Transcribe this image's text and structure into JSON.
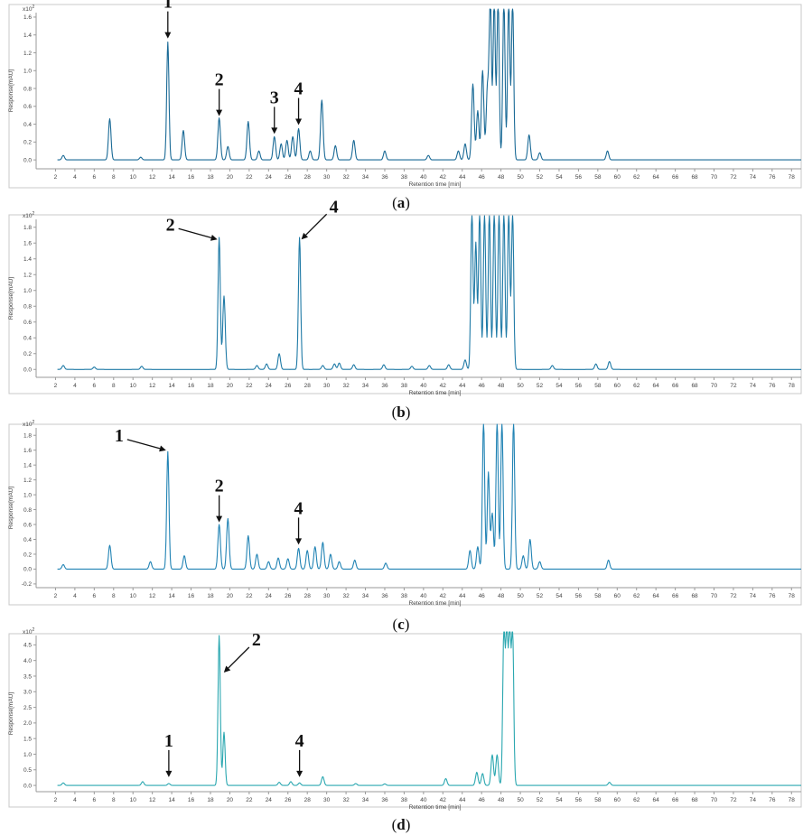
{
  "panels": [
    {
      "caption": "a",
      "color": "#1a6a96",
      "y_label": "Response[mAU]",
      "x_label": "Retention time [min]",
      "exponent": "x10",
      "exponent_power": "2",
      "y_ticks": [
        "0.0",
        "0.2",
        "0.4",
        "0.6",
        "0.8",
        "1.0",
        "1.2",
        "1.4",
        "1.6"
      ],
      "annotations": [
        {
          "label": "1",
          "x": 13.6,
          "y": 1.32,
          "style": "down"
        },
        {
          "label": "2",
          "x": 18.9,
          "y": 0.45,
          "style": "down"
        },
        {
          "label": "3",
          "x": 24.6,
          "y": 0.25,
          "style": "down"
        },
        {
          "label": "4",
          "x": 27.1,
          "y": 0.35,
          "style": "down"
        }
      ]
    },
    {
      "caption": "b",
      "color": "#1f7aa6",
      "y_label": "Response[mAU]",
      "x_label": "Retention time [min]",
      "exponent": "x10",
      "exponent_power": "2",
      "y_ticks": [
        "0.0",
        "0.2",
        "0.4",
        "0.6",
        "0.8",
        "1.0",
        "1.2",
        "1.4",
        "1.6",
        "1.8"
      ],
      "annotations": [
        {
          "label": "2",
          "x": 18.9,
          "y": 1.6,
          "style": "left"
        },
        {
          "label": "4",
          "x": 27.2,
          "y": 1.6,
          "style": "right"
        }
      ]
    },
    {
      "caption": "c",
      "color": "#2183b4",
      "y_label": "Response[mAU]",
      "x_label": "Retention time [min]",
      "exponent": "x10",
      "exponent_power": "2",
      "y_ticks": [
        "-0.2",
        "0.0",
        "0.2",
        "0.4",
        "0.6",
        "0.8",
        "1.0",
        "1.2",
        "1.4",
        "1.6",
        "1.8"
      ],
      "annotations": [
        {
          "label": "1",
          "x": 13.6,
          "y": 1.55,
          "style": "left"
        },
        {
          "label": "2",
          "x": 18.9,
          "y": 0.58,
          "style": "down"
        },
        {
          "label": "4",
          "x": 27.1,
          "y": 0.28,
          "style": "down"
        }
      ]
    },
    {
      "caption": "d",
      "color": "#2aa7b0",
      "y_label": "Response[mAU]",
      "x_label": "Retention time [min]",
      "exponent": "x10",
      "exponent_power": "2",
      "y_ticks": [
        "0.0",
        "0.5",
        "1.0",
        "1.5",
        "2.0",
        "2.5",
        "3.0",
        "3.5",
        "4.0",
        "4.5"
      ],
      "annotations": [
        {
          "label": "1",
          "x": 13.7,
          "y": 0.15,
          "style": "down"
        },
        {
          "label": "2",
          "x": 19.2,
          "y": 3.5,
          "style": "right"
        },
        {
          "label": "4",
          "x": 27.2,
          "y": 0.15,
          "style": "down"
        }
      ]
    }
  ],
  "x_ticks": [
    "2",
    "4",
    "6",
    "8",
    "10",
    "12",
    "14",
    "16",
    "18",
    "20",
    "22",
    "24",
    "26",
    "28",
    "30",
    "32",
    "34",
    "36",
    "38",
    "40",
    "42",
    "44",
    "46",
    "48",
    "50",
    "52",
    "54",
    "56",
    "58",
    "60",
    "62",
    "64",
    "66",
    "68",
    "70",
    "72",
    "74",
    "76",
    "78"
  ],
  "chart_data": [
    {
      "type": "line",
      "panel": "a",
      "xlabel": "Retention time [min]",
      "ylabel": "Response[mAU]",
      "y_multiplier": "x10^2",
      "xlim": [
        0,
        79
      ],
      "ylim": [
        -0.1,
        1.65
      ],
      "peaks": [
        {
          "x": 2.8,
          "y": 0.05
        },
        {
          "x": 7.6,
          "y": 0.46
        },
        {
          "x": 10.8,
          "y": 0.03
        },
        {
          "x": 13.6,
          "y": 1.32
        },
        {
          "x": 15.2,
          "y": 0.33
        },
        {
          "x": 18.9,
          "y": 0.47
        },
        {
          "x": 19.8,
          "y": 0.15
        },
        {
          "x": 21.9,
          "y": 0.43
        },
        {
          "x": 23.0,
          "y": 0.1
        },
        {
          "x": 24.6,
          "y": 0.26
        },
        {
          "x": 25.3,
          "y": 0.18
        },
        {
          "x": 25.9,
          "y": 0.22
        },
        {
          "x": 26.5,
          "y": 0.26
        },
        {
          "x": 27.1,
          "y": 0.35
        },
        {
          "x": 28.3,
          "y": 0.1
        },
        {
          "x": 29.5,
          "y": 0.67
        },
        {
          "x": 30.9,
          "y": 0.16
        },
        {
          "x": 32.8,
          "y": 0.22
        },
        {
          "x": 36.0,
          "y": 0.1
        },
        {
          "x": 40.5,
          "y": 0.05
        },
        {
          "x": 43.6,
          "y": 0.1
        },
        {
          "x": 44.3,
          "y": 0.18
        },
        {
          "x": 45.1,
          "y": 0.85
        },
        {
          "x": 45.6,
          "y": 0.55
        },
        {
          "x": 46.1,
          "y": 1.0
        },
        {
          "x": 46.6,
          "y": 0.8
        },
        {
          "x": 46.9,
          "y": 1.8
        },
        {
          "x": 47.3,
          "y": 1.8
        },
        {
          "x": 47.7,
          "y": 1.8
        },
        {
          "x": 48.3,
          "y": 1.8
        },
        {
          "x": 48.8,
          "y": 1.8
        },
        {
          "x": 49.2,
          "y": 1.8
        },
        {
          "x": 50.9,
          "y": 0.28
        },
        {
          "x": 52.0,
          "y": 0.08
        },
        {
          "x": 59.0,
          "y": 0.1
        }
      ]
    },
    {
      "type": "line",
      "panel": "b",
      "xlabel": "Retention time [min]",
      "ylabel": "Response[mAU]",
      "y_multiplier": "x10^2",
      "xlim": [
        0,
        79
      ],
      "ylim": [
        -0.1,
        1.9
      ],
      "peaks": [
        {
          "x": 2.8,
          "y": 0.05
        },
        {
          "x": 6.0,
          "y": 0.03
        },
        {
          "x": 10.9,
          "y": 0.04
        },
        {
          "x": 18.9,
          "y": 1.67
        },
        {
          "x": 19.4,
          "y": 0.93
        },
        {
          "x": 22.8,
          "y": 0.05
        },
        {
          "x": 23.8,
          "y": 0.07
        },
        {
          "x": 25.1,
          "y": 0.2
        },
        {
          "x": 27.2,
          "y": 1.67
        },
        {
          "x": 29.6,
          "y": 0.05
        },
        {
          "x": 30.8,
          "y": 0.07
        },
        {
          "x": 31.3,
          "y": 0.08
        },
        {
          "x": 32.8,
          "y": 0.06
        },
        {
          "x": 35.9,
          "y": 0.06
        },
        {
          "x": 38.8,
          "y": 0.04
        },
        {
          "x": 40.6,
          "y": 0.05
        },
        {
          "x": 42.6,
          "y": 0.06
        },
        {
          "x": 44.3,
          "y": 0.12
        },
        {
          "x": 45.0,
          "y": 2.0
        },
        {
          "x": 45.4,
          "y": 1.6
        },
        {
          "x": 45.8,
          "y": 2.0
        },
        {
          "x": 46.3,
          "y": 2.0
        },
        {
          "x": 46.8,
          "y": 2.0
        },
        {
          "x": 47.3,
          "y": 2.0
        },
        {
          "x": 47.8,
          "y": 2.0
        },
        {
          "x": 48.3,
          "y": 2.0
        },
        {
          "x": 48.8,
          "y": 2.0
        },
        {
          "x": 49.2,
          "y": 2.0
        },
        {
          "x": 53.3,
          "y": 0.05
        },
        {
          "x": 57.8,
          "y": 0.07
        },
        {
          "x": 59.2,
          "y": 0.1
        }
      ]
    },
    {
      "type": "line",
      "panel": "c",
      "xlabel": "Retention time [min]",
      "ylabel": "Response[mAU]",
      "y_multiplier": "x10^2",
      "xlim": [
        0,
        79
      ],
      "ylim": [
        -0.25,
        1.9
      ],
      "peaks": [
        {
          "x": 2.8,
          "y": 0.06
        },
        {
          "x": 7.6,
          "y": 0.32
        },
        {
          "x": 11.8,
          "y": 0.1
        },
        {
          "x": 13.6,
          "y": 1.58
        },
        {
          "x": 15.3,
          "y": 0.18
        },
        {
          "x": 18.9,
          "y": 0.6
        },
        {
          "x": 19.8,
          "y": 0.68
        },
        {
          "x": 21.9,
          "y": 0.45
        },
        {
          "x": 22.8,
          "y": 0.2
        },
        {
          "x": 24.0,
          "y": 0.1
        },
        {
          "x": 25.0,
          "y": 0.15
        },
        {
          "x": 26.0,
          "y": 0.14
        },
        {
          "x": 27.1,
          "y": 0.28
        },
        {
          "x": 28.0,
          "y": 0.25
        },
        {
          "x": 28.8,
          "y": 0.3
        },
        {
          "x": 29.6,
          "y": 0.36
        },
        {
          "x": 30.4,
          "y": 0.2
        },
        {
          "x": 31.3,
          "y": 0.1
        },
        {
          "x": 32.9,
          "y": 0.12
        },
        {
          "x": 36.1,
          "y": 0.08
        },
        {
          "x": 44.8,
          "y": 0.25
        },
        {
          "x": 45.6,
          "y": 0.3
        },
        {
          "x": 46.2,
          "y": 2.0
        },
        {
          "x": 46.7,
          "y": 1.3
        },
        {
          "x": 47.1,
          "y": 0.75
        },
        {
          "x": 47.6,
          "y": 2.0
        },
        {
          "x": 48.1,
          "y": 2.0
        },
        {
          "x": 49.3,
          "y": 2.0
        },
        {
          "x": 50.3,
          "y": 0.18
        },
        {
          "x": 51.0,
          "y": 0.4
        },
        {
          "x": 52.0,
          "y": 0.1
        },
        {
          "x": 59.1,
          "y": 0.12
        }
      ]
    },
    {
      "type": "line",
      "panel": "d",
      "xlabel": "Retention time [min]",
      "ylabel": "Response[mAU]",
      "y_multiplier": "x10^2",
      "xlim": [
        0,
        79
      ],
      "ylim": [
        -0.2,
        4.8
      ],
      "peaks": [
        {
          "x": 2.8,
          "y": 0.08
        },
        {
          "x": 11.0,
          "y": 0.12
        },
        {
          "x": 13.7,
          "y": 0.06
        },
        {
          "x": 18.9,
          "y": 4.8
        },
        {
          "x": 19.4,
          "y": 1.7
        },
        {
          "x": 25.1,
          "y": 0.1
        },
        {
          "x": 26.3,
          "y": 0.12
        },
        {
          "x": 27.2,
          "y": 0.08
        },
        {
          "x": 29.6,
          "y": 0.28
        },
        {
          "x": 33.0,
          "y": 0.06
        },
        {
          "x": 36.0,
          "y": 0.05
        },
        {
          "x": 42.3,
          "y": 0.22
        },
        {
          "x": 45.5,
          "y": 0.42
        },
        {
          "x": 46.1,
          "y": 0.38
        },
        {
          "x": 47.1,
          "y": 0.98
        },
        {
          "x": 47.6,
          "y": 0.98
        },
        {
          "x": 48.3,
          "y": 5.0
        },
        {
          "x": 48.6,
          "y": 5.0
        },
        {
          "x": 48.9,
          "y": 5.0
        },
        {
          "x": 49.2,
          "y": 5.0
        },
        {
          "x": 59.2,
          "y": 0.1
        }
      ]
    }
  ]
}
